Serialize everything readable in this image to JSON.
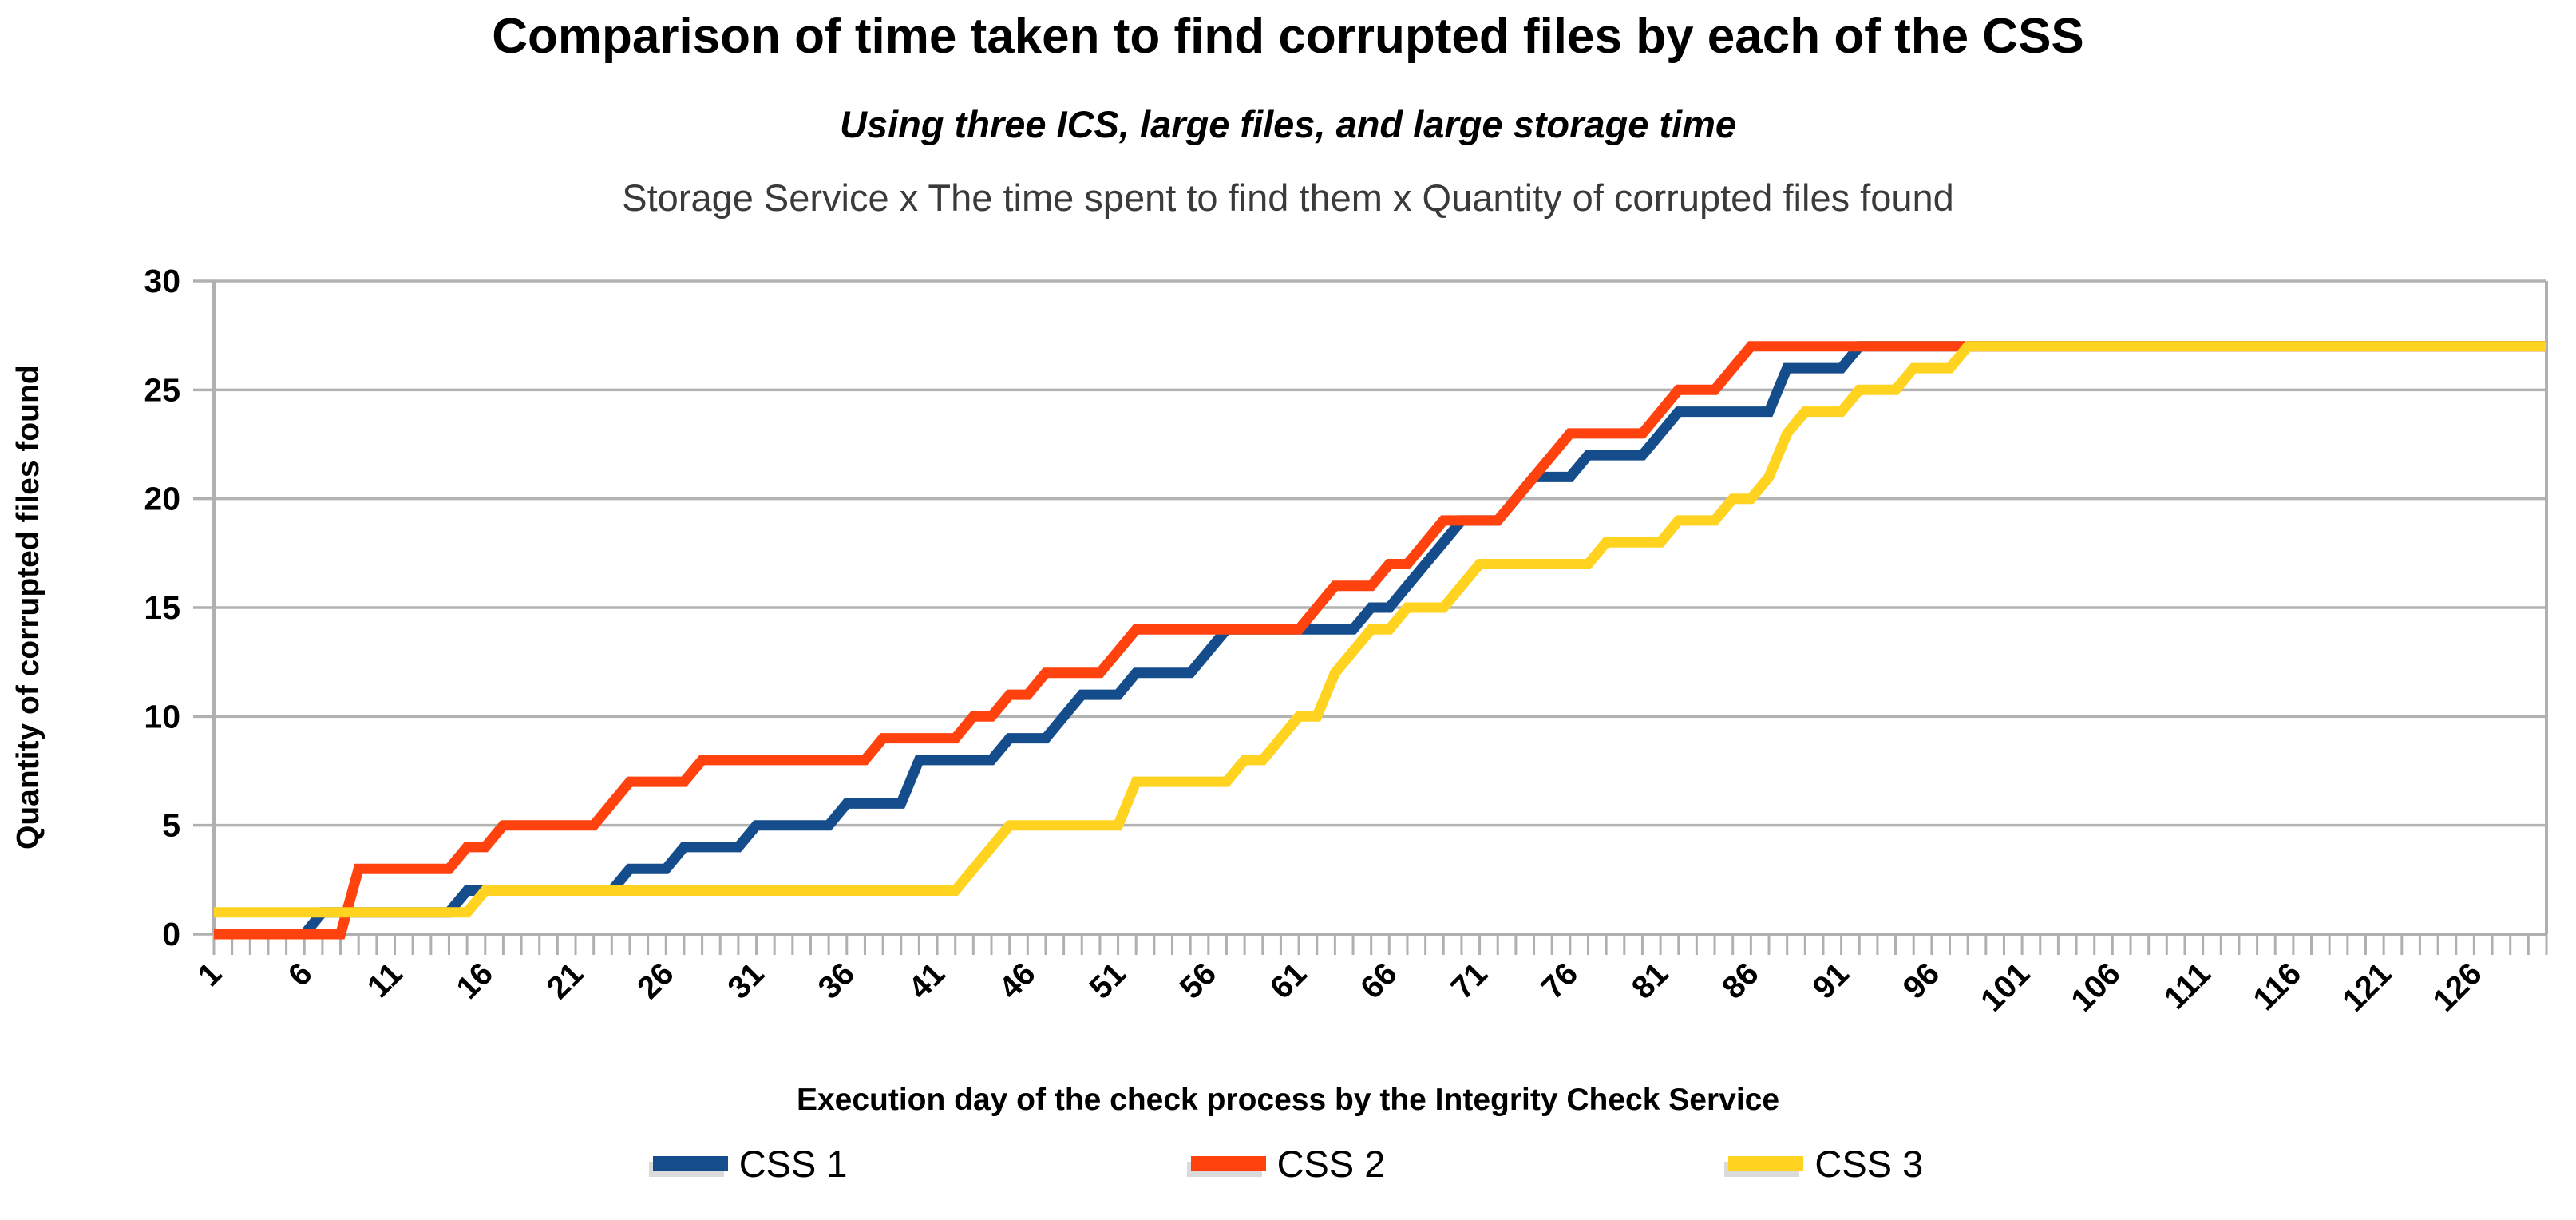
{
  "chart_data": {
    "type": "line",
    "title": "Comparison of time taken to find corrupted files by each of the CSS",
    "subtitle": "Using three ICS, large files, and large storage time",
    "subtitle2": "Storage Service x The time spent to find them x Quantity of corrupted files found",
    "xlabel": "Execution day of the check process by the Integrity Check Service",
    "ylabel": "Quantity of corrupted files found",
    "grid": true,
    "legend_position": "bottom",
    "x_axis": {
      "range": [
        1,
        130
      ],
      "minor_tick_every": 1,
      "tick_labels": [
        1,
        6,
        11,
        16,
        21,
        26,
        31,
        36,
        41,
        46,
        51,
        56,
        61,
        66,
        71,
        76,
        81,
        86,
        91,
        96,
        101,
        106,
        111,
        116,
        121,
        126
      ],
      "tick_label_rotation_deg": -45
    },
    "y_axis": {
      "range": [
        0,
        30
      ],
      "ticks": [
        0,
        5,
        10,
        15,
        20,
        25,
        30
      ]
    },
    "colors": {
      "axis": "#b0b0b0",
      "grid": "#b3b3b3",
      "text": "#000000",
      "subtitle2_text": "#3a3a3a"
    },
    "series": [
      {
        "name": "CSS 1",
        "color": "#154D8C",
        "values_by_day": [
          0,
          0,
          0,
          0,
          0,
          0,
          1,
          1,
          1,
          1,
          1,
          1,
          1,
          1,
          2,
          2,
          2,
          2,
          2,
          2,
          2,
          2,
          2,
          3,
          3,
          3,
          4,
          4,
          4,
          4,
          5,
          5,
          5,
          5,
          5,
          6,
          6,
          6,
          6,
          8,
          8,
          8,
          8,
          8,
          9,
          9,
          9,
          10,
          11,
          11,
          11,
          12,
          12,
          12,
          12,
          13,
          14,
          14,
          14,
          14,
          14,
          14,
          14,
          14,
          15,
          15,
          16,
          17,
          18,
          19,
          19,
          19,
          20,
          21,
          21,
          21,
          22,
          22,
          22,
          22,
          23,
          24,
          24,
          24,
          24,
          24,
          24,
          26,
          26,
          26,
          26,
          27,
          27,
          27,
          27,
          27,
          27,
          27,
          27,
          27,
          27,
          27,
          27,
          27,
          27,
          27,
          27,
          27,
          27,
          27,
          27,
          27,
          27,
          27,
          27,
          27,
          27,
          27,
          27,
          27,
          27,
          27,
          27,
          27,
          27,
          27,
          27,
          27,
          27,
          27
        ]
      },
      {
        "name": "CSS 2",
        "color": "#FF420E",
        "values_by_day": [
          0,
          0,
          0,
          0,
          0,
          0,
          0,
          0,
          3,
          3,
          3,
          3,
          3,
          3,
          4,
          4,
          5,
          5,
          5,
          5,
          5,
          5,
          6,
          7,
          7,
          7,
          7,
          8,
          8,
          8,
          8,
          8,
          8,
          8,
          8,
          8,
          8,
          9,
          9,
          9,
          9,
          9,
          10,
          10,
          11,
          11,
          12,
          12,
          12,
          12,
          13,
          14,
          14,
          14,
          14,
          14,
          14,
          14,
          14,
          14,
          14,
          15,
          16,
          16,
          16,
          17,
          17,
          18,
          19,
          19,
          19,
          19,
          20,
          21,
          22,
          23,
          23,
          23,
          23,
          23,
          24,
          25,
          25,
          25,
          26,
          27,
          27,
          27,
          27,
          27,
          27,
          27,
          27,
          27,
          27,
          27,
          27,
          27,
          27,
          27,
          27,
          27,
          27,
          27,
          27,
          27,
          27,
          27,
          27,
          27,
          27,
          27,
          27,
          27,
          27,
          27,
          27,
          27,
          27,
          27,
          27,
          27,
          27,
          27,
          27,
          27,
          27,
          27,
          27,
          27
        ]
      },
      {
        "name": "CSS 3",
        "color": "#FFD320",
        "values_by_day": [
          1,
          1,
          1,
          1,
          1,
          1,
          1,
          1,
          1,
          1,
          1,
          1,
          1,
          1,
          1,
          2,
          2,
          2,
          2,
          2,
          2,
          2,
          2,
          2,
          2,
          2,
          2,
          2,
          2,
          2,
          2,
          2,
          2,
          2,
          2,
          2,
          2,
          2,
          2,
          2,
          2,
          2,
          3,
          4,
          5,
          5,
          5,
          5,
          5,
          5,
          5,
          7,
          7,
          7,
          7,
          7,
          7,
          8,
          8,
          9,
          10,
          10,
          12,
          13,
          14,
          14,
          15,
          15,
          15,
          16,
          17,
          17,
          17,
          17,
          17,
          17,
          17,
          18,
          18,
          18,
          18,
          19,
          19,
          19,
          20,
          20,
          21,
          23,
          24,
          24,
          24,
          25,
          25,
          25,
          26,
          26,
          26,
          27,
          27,
          27,
          27,
          27,
          27,
          27,
          27,
          27,
          27,
          27,
          27,
          27,
          27,
          27,
          27,
          27,
          27,
          27,
          27,
          27,
          27,
          27,
          27,
          27,
          27,
          27,
          27,
          27,
          27,
          27,
          27,
          27
        ]
      }
    ]
  }
}
